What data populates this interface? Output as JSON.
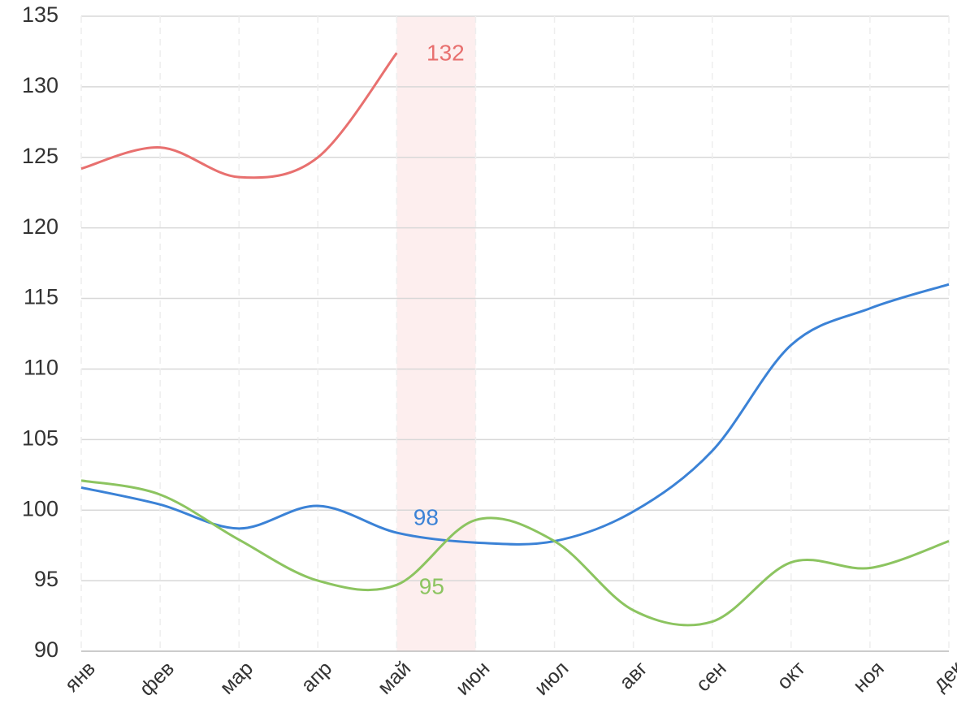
{
  "chart_data": {
    "type": "line",
    "categories": [
      "янв",
      "фев",
      "мар",
      "апр",
      "май",
      "июн",
      "июл",
      "авг",
      "сен",
      "окт",
      "ноя",
      "дек"
    ],
    "series": [
      {
        "name": "red",
        "color": "#e8706f",
        "values": [
          124.2,
          125.7,
          123.6,
          125,
          132.4,
          null,
          null,
          null,
          null,
          null,
          null,
          null
        ],
        "value_labels": [
          null,
          null,
          null,
          null,
          "132",
          null,
          null,
          null,
          null,
          null,
          null,
          null
        ]
      },
      {
        "name": "blue",
        "color": "#3b82d6",
        "values": [
          101.6,
          100.4,
          98.7,
          100.3,
          98.4,
          97.7,
          97.8,
          99.9,
          104.2,
          111.7,
          114.3,
          116
        ],
        "value_labels": [
          null,
          null,
          null,
          null,
          "98",
          null,
          null,
          null,
          null,
          null,
          null,
          null
        ]
      },
      {
        "name": "green",
        "color": "#8cc460",
        "values": [
          102.1,
          101.1,
          97.9,
          95,
          94.7,
          99.3,
          97.8,
          92.9,
          92.1,
          96.3,
          95.9,
          97.8
        ],
        "value_labels": [
          null,
          null,
          null,
          null,
          "95",
          null,
          null,
          null,
          null,
          null,
          null,
          null
        ]
      }
    ],
    "ylim": [
      90,
      135
    ],
    "yticks": [
      90,
      95,
      100,
      105,
      110,
      115,
      120,
      125,
      130,
      135
    ],
    "grid": true,
    "highlight": {
      "from": "май",
      "to": "июн",
      "color": "#fdeeee"
    }
  }
}
